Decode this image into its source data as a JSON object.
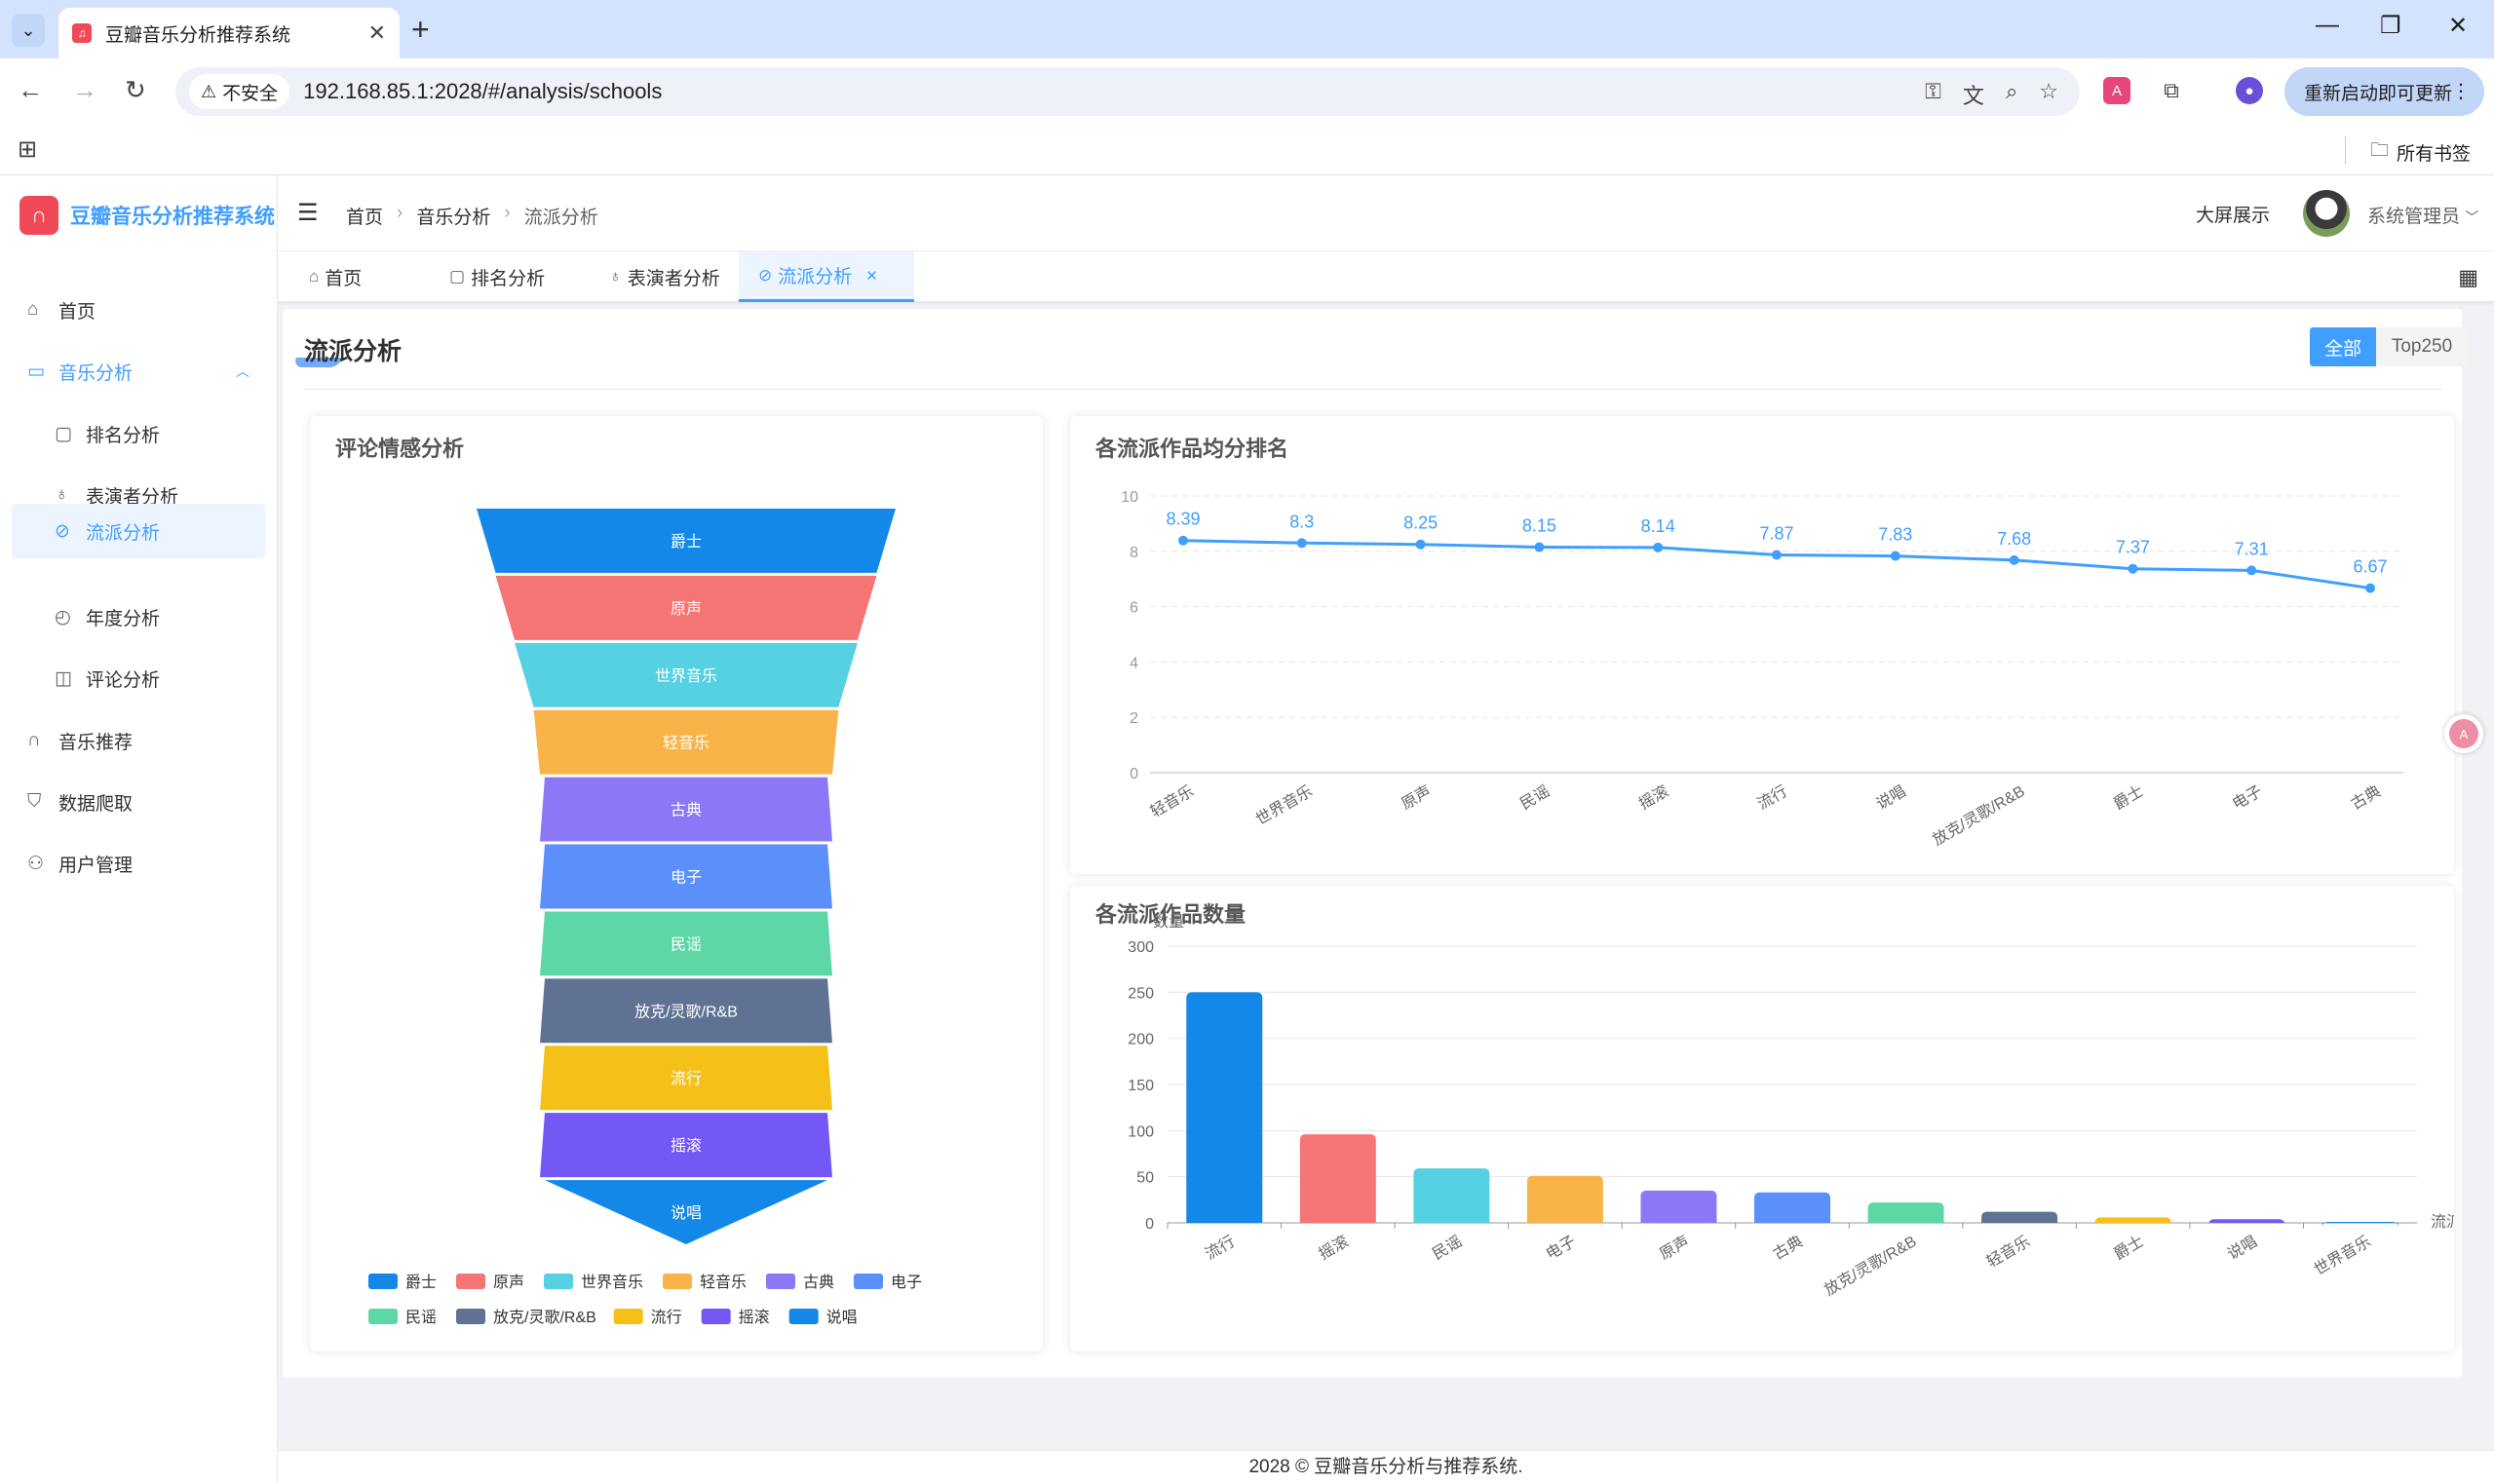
{
  "browser": {
    "tab_title": "豆瓣音乐分析推荐系统",
    "security_label": "不安全",
    "url": "192.168.85.1:2028/#/analysis/schools",
    "update_button": "重新启动即可更新",
    "all_bookmarks": "所有书签"
  },
  "app": {
    "name": "豆瓣音乐分析推荐系统",
    "footer": "2028 © 豆瓣音乐分析与推荐系统."
  },
  "sidebar": {
    "home": "首页",
    "music_analysis": "音乐分析",
    "sub": [
      "排名分析",
      "表演者分析",
      "流派分析",
      "年度分析",
      "评论分析"
    ],
    "music_recommend": "音乐推荐",
    "crawler": "数据爬取",
    "user_mgmt": "用户管理"
  },
  "header": {
    "breadcrumb": [
      "首页",
      "音乐分析",
      "流派分析"
    ],
    "big_screen": "大屏展示",
    "user": "系统管理员"
  },
  "tags": [
    "首页",
    "排名分析",
    "表演者分析",
    "流派分析"
  ],
  "page": {
    "title": "流派分析",
    "filter_all": "全部",
    "filter_top": "Top250"
  },
  "panels": {
    "funnel_title": "评论情感分析",
    "line_title": "各流派作品均分排名",
    "bar_title": "各流派作品数量"
  },
  "colors": {
    "primary": "#409eff",
    "palette": [
      "#1388e8",
      "#f57474",
      "#56d0e3",
      "#f8b448",
      "#8b78f6",
      "#5b8ff9",
      "#5ed7a7",
      "#5f7293",
      "#f5c018",
      "#7358f5",
      "#1388e8"
    ]
  },
  "chart_data": [
    {
      "type": "funnel",
      "title": "评论情感分析",
      "categories": [
        "爵士",
        "原声",
        "世界音乐",
        "轻音乐",
        "古典",
        "电子",
        "民谣",
        "放克/灵歌/R&B",
        "流行",
        "摇滚",
        "说唱"
      ],
      "legend_position": "bottom"
    },
    {
      "type": "line",
      "title": "各流派作品均分排名",
      "categories": [
        "轻音乐",
        "世界音乐",
        "原声",
        "民谣",
        "摇滚",
        "流行",
        "说唱",
        "放克/灵歌/R&B",
        "爵士",
        "电子",
        "古典"
      ],
      "values": [
        8.39,
        8.3,
        8.25,
        8.15,
        8.14,
        7.87,
        7.83,
        7.68,
        7.37,
        7.31,
        6.67
      ],
      "ylim": [
        0,
        10
      ],
      "yticks": [
        0,
        2,
        4,
        6,
        8,
        10
      ],
      "grid": true
    },
    {
      "type": "bar",
      "title": "各流派作品数量",
      "categories": [
        "流行",
        "摇滚",
        "民谣",
        "电子",
        "原声",
        "古典",
        "放克/灵歌/R&B",
        "轻音乐",
        "爵士",
        "说唱",
        "世界音乐"
      ],
      "values": [
        250,
        96,
        59,
        51,
        35,
        33,
        22,
        12,
        6,
        4,
        1
      ],
      "ylabel": "数量",
      "xlabel": "流派",
      "ylim": [
        0,
        300
      ],
      "yticks": [
        0,
        50,
        100,
        150,
        200,
        250,
        300
      ],
      "grid": true
    }
  ]
}
